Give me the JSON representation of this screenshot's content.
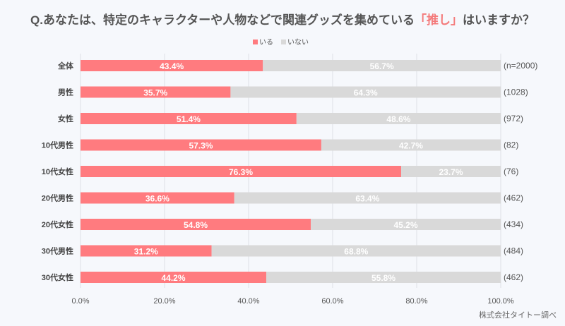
{
  "chart_data": {
    "type": "bar",
    "stacked": true,
    "orientation": "horizontal",
    "title_prefix": "Q.あなたは、特定のキャラクターや人物などで関連グッズを集めている",
    "title_highlight": "「推し」",
    "title_suffix": "はいますか？",
    "categories": [
      "全体",
      "男性",
      "女性",
      "10代男性",
      "10代女性",
      "20代男性",
      "20代女性",
      "30代男性",
      "30代女性"
    ],
    "sample_sizes": [
      "(n=2000)",
      "(1028)",
      "(972)",
      "(82)",
      "(76)",
      "(462)",
      "(434)",
      "(484)",
      "(462)"
    ],
    "series": [
      {
        "name": "いる",
        "color": "#ff7b7f",
        "values": [
          43.4,
          35.7,
          51.4,
          57.3,
          76.3,
          36.6,
          54.8,
          31.2,
          44.2
        ]
      },
      {
        "name": "いない",
        "color": "#d9d9d9",
        "values": [
          56.7,
          64.3,
          48.6,
          42.7,
          23.7,
          63.4,
          45.2,
          68.8,
          55.8
        ]
      }
    ],
    "xlim": [
      0,
      100
    ],
    "xticks": [
      "0.0%",
      "20.0%",
      "40.0%",
      "60.0%",
      "80.0%",
      "100.0%"
    ],
    "grid": true,
    "legend": "top-center",
    "credit": "株式会社タイトー調べ"
  }
}
